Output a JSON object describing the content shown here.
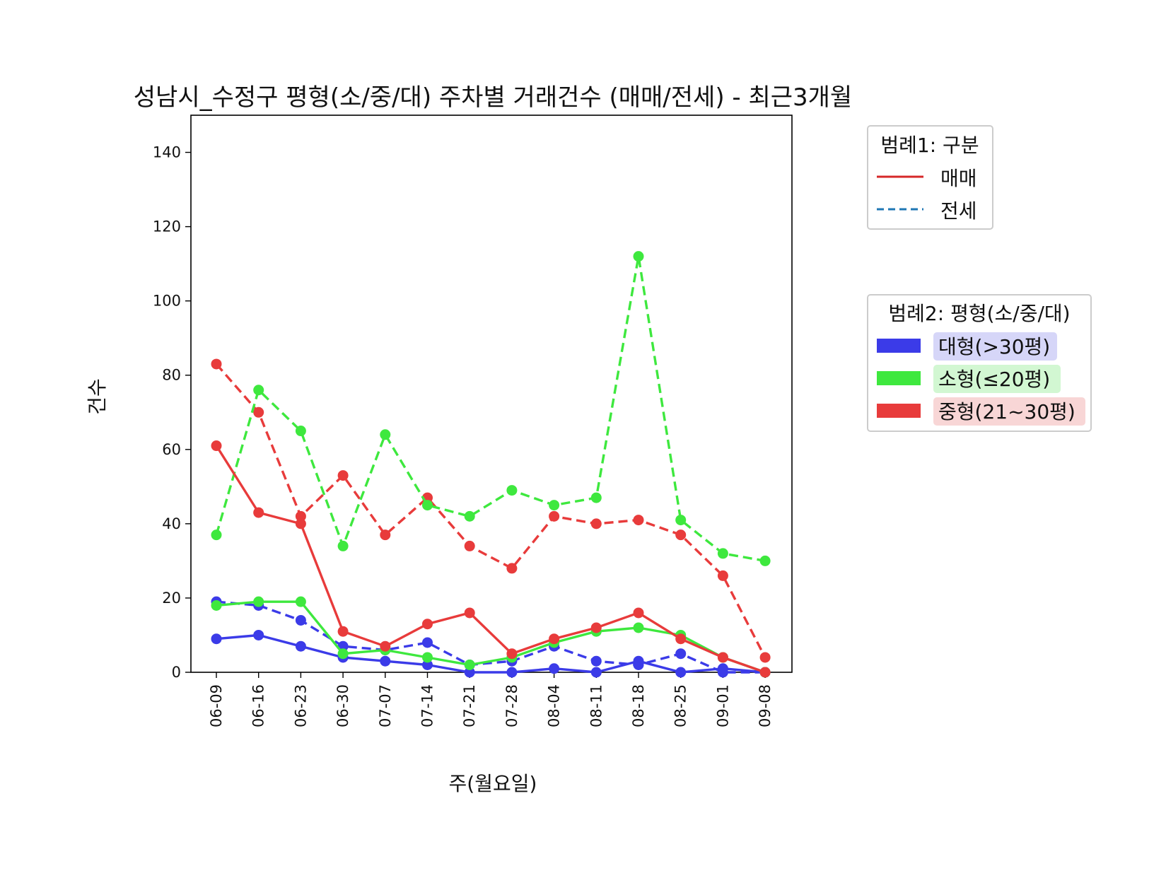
{
  "chart_data": {
    "type": "line",
    "title": "성남시_수정구 평형(소/중/대) 주차별 거래건수 (매매/전세) - 최근3개월",
    "xlabel": "주(월요일)",
    "ylabel": "건수",
    "ylim": [
      0,
      150
    ],
    "yticks": [
      0,
      20,
      40,
      60,
      80,
      100,
      120,
      140
    ],
    "categories": [
      "06-09",
      "06-16",
      "06-23",
      "06-30",
      "07-07",
      "07-14",
      "07-21",
      "07-28",
      "08-04",
      "08-11",
      "08-18",
      "08-25",
      "09-01",
      "09-08"
    ],
    "grid": false,
    "legend1": {
      "title": "범례1: 구분",
      "placement": "top-right outside",
      "entries": [
        {
          "label": "매매",
          "style": "solid",
          "color": "#d62728"
        },
        {
          "label": "전세",
          "style": "dashed",
          "color": "#1f77b4"
        }
      ]
    },
    "legend2": {
      "title": "범례2: 평형(소/중/대)",
      "placement": "right outside",
      "entries": [
        {
          "label": "대형(>30평)",
          "color": "#3b3be8",
          "bg": "#d6d6f8"
        },
        {
          "label": "소형(≤20평)",
          "color": "#3ee83e",
          "bg": "#d2f7d2"
        },
        {
          "label": "중형(21~30평)",
          "color": "#e83b3b",
          "bg": "#f8d6d6"
        }
      ]
    },
    "series": [
      {
        "size": "중형(21~30평)",
        "kind": "전세",
        "color": "#e83b3b",
        "style": "dashed",
        "values": [
          83,
          70,
          42,
          53,
          37,
          47,
          34,
          28,
          42,
          40,
          41,
          37,
          26,
          4
        ]
      },
      {
        "size": "소형(≤20평)",
        "kind": "전세",
        "color": "#3ee83e",
        "style": "dashed",
        "values": [
          37,
          76,
          65,
          34,
          64,
          45,
          42,
          49,
          45,
          47,
          112,
          41,
          32,
          30
        ]
      },
      {
        "size": "대형(>30평)",
        "kind": "전세",
        "color": "#3b3be8",
        "style": "dashed",
        "values": [
          19,
          18,
          14,
          7,
          6,
          8,
          2,
          3,
          7,
          3,
          2,
          5,
          0,
          0
        ]
      },
      {
        "size": "대형(>30평)",
        "kind": "매매",
        "color": "#3b3be8",
        "style": "solid",
        "values": [
          9,
          10,
          7,
          4,
          3,
          2,
          0,
          0,
          1,
          0,
          3,
          0,
          1,
          0
        ]
      },
      {
        "size": "소형(≤20평)",
        "kind": "매매",
        "color": "#3ee83e",
        "style": "solid",
        "values": [
          18,
          19,
          19,
          5,
          6,
          4,
          2,
          4,
          8,
          11,
          12,
          10,
          4,
          0
        ]
      },
      {
        "size": "중형(21~30평)",
        "kind": "매매",
        "color": "#e83b3b",
        "style": "solid",
        "values": [
          61,
          43,
          40,
          11,
          7,
          13,
          16,
          5,
          9,
          12,
          16,
          9,
          4,
          0
        ]
      }
    ]
  }
}
